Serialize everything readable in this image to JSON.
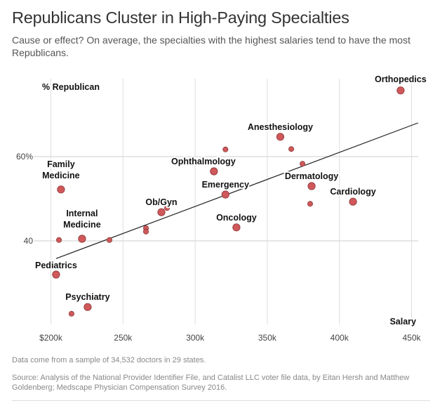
{
  "title": "Republicans Cluster in High-Paying Specialties",
  "subtitle": "Cause or effect? On average, the specialties with the highest salaries tend to have the most Republicans.",
  "note": "Data come from a sample of 34,532 doctors in 29 states.",
  "source": "Source:  Analysis of the National Provider Identifier File, and Catalist LLC voter file data, by Eitan Hersh and Matthew Goldenberg;  Medscape Physician Compensation Survey 2016.",
  "chart_data": {
    "type": "scatter",
    "xlabel": "Salary",
    "ylabel": "% Republican",
    "xlim": [
      200,
      450
    ],
    "ylim": [
      20,
      79
    ],
    "x_ticks": [
      200,
      250,
      300,
      350,
      400,
      450
    ],
    "x_tick_labels": [
      "$200k",
      "250k",
      "300k",
      "350k",
      "400k",
      "450k"
    ],
    "y_ticks": [
      40,
      60
    ],
    "y_tick_labels": [
      "40",
      "60%"
    ],
    "grid": true,
    "point_color": "#d0585a",
    "points": [
      {
        "name": "Family Medicine",
        "x": 207,
        "y": 52.2,
        "major": true
      },
      {
        "name": "",
        "x": 205.6,
        "y": 40.2,
        "major": false
      },
      {
        "name": "Internal Medicine",
        "x": 221.6,
        "y": 40.5,
        "major": true
      },
      {
        "name": "",
        "x": 240.6,
        "y": 40.2,
        "major": false
      },
      {
        "name": "Pediatrics",
        "x": 203.6,
        "y": 32,
        "major": true
      },
      {
        "name": "Psychiatry",
        "x": 225.5,
        "y": 24.3,
        "major": true
      },
      {
        "name": "",
        "x": 214.3,
        "y": 22.7,
        "major": false
      },
      {
        "name": "",
        "x": 265.9,
        "y": 43,
        "major": false
      },
      {
        "name": "",
        "x": 265.9,
        "y": 42.2,
        "major": false
      },
      {
        "name": "",
        "x": 280.5,
        "y": 47.8,
        "major": false
      },
      {
        "name": "Ob/Gyn",
        "x": 276.6,
        "y": 46.8,
        "major": true
      },
      {
        "name": "Ophthalmology",
        "x": 313,
        "y": 56.5,
        "major": true
      },
      {
        "name": "",
        "x": 321,
        "y": 61.7,
        "major": false
      },
      {
        "name": "Emergency",
        "x": 321,
        "y": 51,
        "major": true
      },
      {
        "name": "Oncology",
        "x": 328.6,
        "y": 43.2,
        "major": true
      },
      {
        "name": "Anesthesiology",
        "x": 359,
        "y": 64.7,
        "major": true
      },
      {
        "name": "",
        "x": 366.6,
        "y": 61.8,
        "major": false
      },
      {
        "name": "",
        "x": 374.4,
        "y": 58.3,
        "major": false
      },
      {
        "name": "Dermatology",
        "x": 380.7,
        "y": 53,
        "major": true
      },
      {
        "name": "",
        "x": 379.7,
        "y": 48.8,
        "major": false
      },
      {
        "name": "Cardiology",
        "x": 409.4,
        "y": 49.3,
        "major": true
      },
      {
        "name": "Orthopedics",
        "x": 442.4,
        "y": 75.7,
        "major": true
      }
    ],
    "trend_line": {
      "x": [
        203.6,
        454.5
      ],
      "y": [
        35.8,
        68
      ]
    }
  }
}
